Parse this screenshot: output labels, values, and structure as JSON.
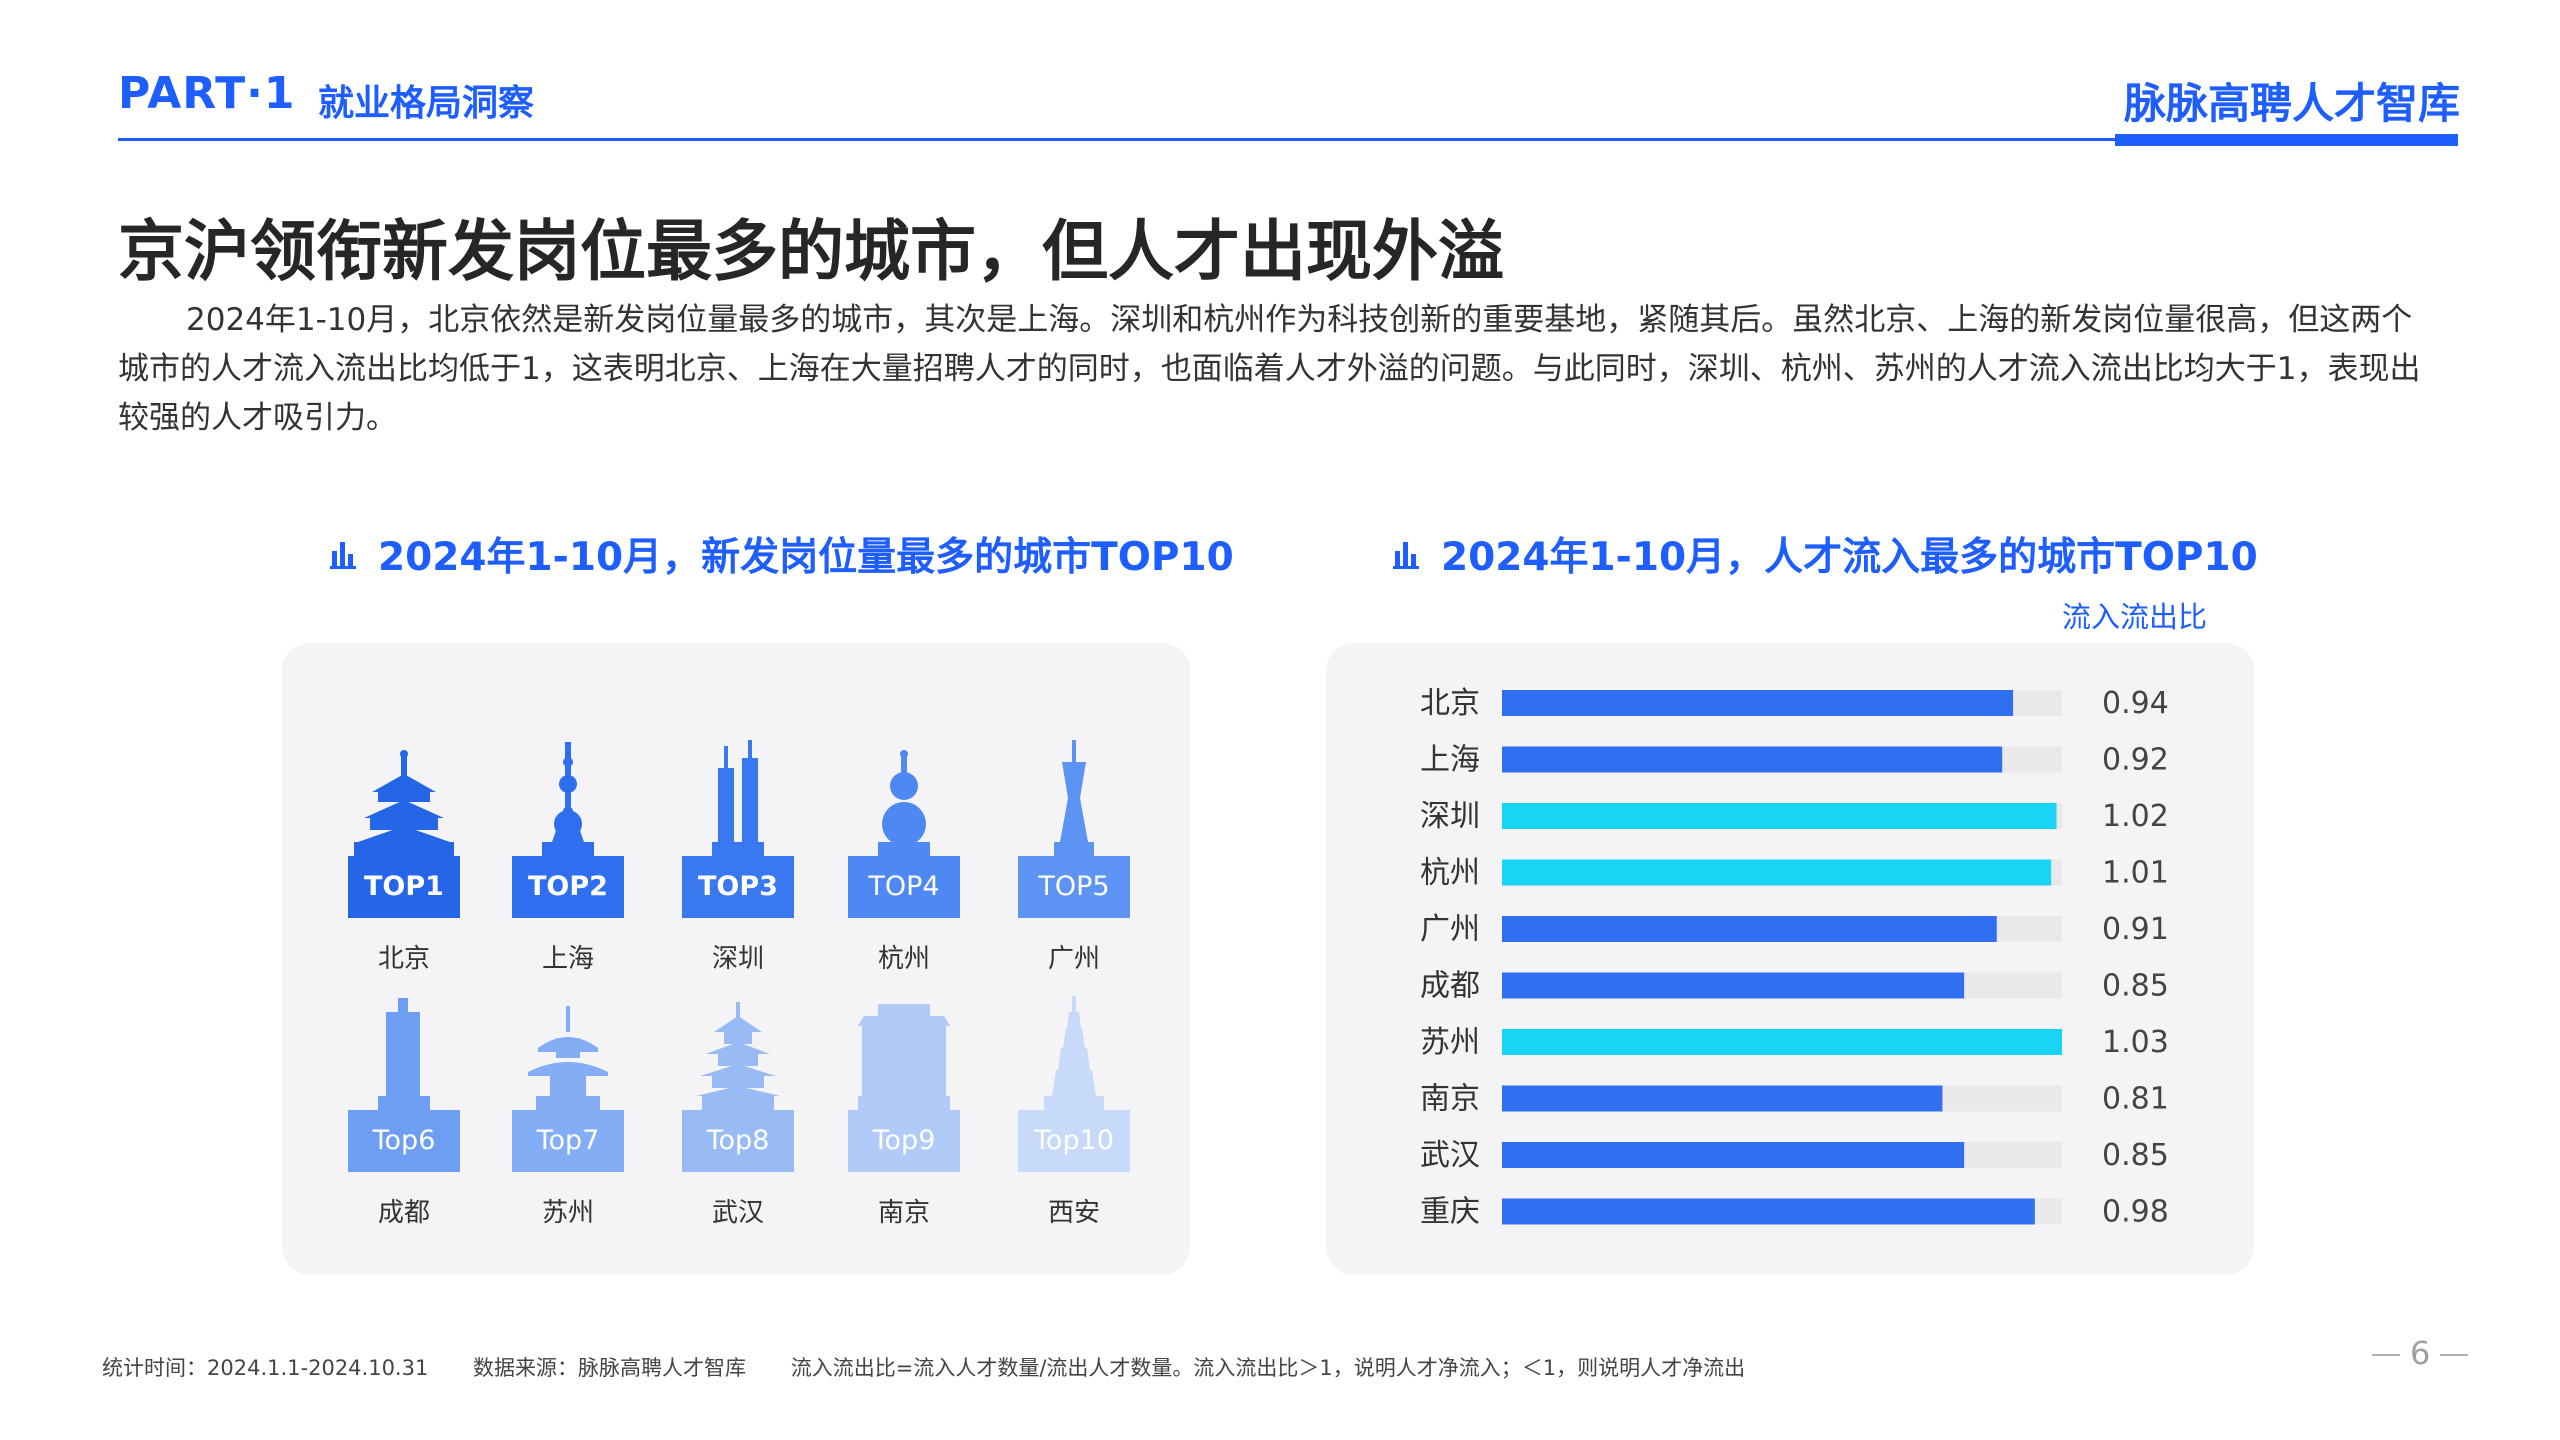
{
  "header": {
    "part": "PART·1",
    "section": "就业格局洞察",
    "brand": "脉脉高聘人才智库"
  },
  "title": "京沪领衔新发岗位最多的城市，但人才出现外溢",
  "intro": "2024年1-10月，北京依然是新发岗位量最多的城市，其次是上海。深圳和杭州作为科技创新的重要基地，紧随其后。虽然北京、上海的新发岗位量很高，但这两个城市的人才流入流出比均低于1，这表明北京、上海在大量招聘人才的同时，也面临着人才外溢的问题。与此同时，深圳、杭州、苏州的人才流入流出比均大于1，表现出较强的人才吸引力。",
  "left_chart": {
    "title": "2024年1-10月，新发岗位量最多的城市TOP10",
    "cities": [
      {
        "rank": "TOP1",
        "name": "北京",
        "color": "#2566e8",
        "icon": "temple-of-heaven-icon"
      },
      {
        "rank": "TOP2",
        "name": "上海",
        "color": "#2f6fef",
        "icon": "oriental-pearl-tower-icon"
      },
      {
        "rank": "TOP3",
        "name": "深圳",
        "color": "#3a78f0",
        "icon": "twin-towers-icon"
      },
      {
        "rank": "TOP4",
        "name": "杭州",
        "color": "#4e88f2",
        "icon": "pagoda-gourd-icon"
      },
      {
        "rank": "TOP5",
        "name": "广州",
        "color": "#5d94f3",
        "icon": "canton-tower-icon"
      },
      {
        "rank": "Top6",
        "name": "成都",
        "color": "#6e9ef2",
        "icon": "skyscraper-icon"
      },
      {
        "rank": "Top7",
        "name": "苏州",
        "color": "#83adf4",
        "icon": "pavilion-icon"
      },
      {
        "rank": "Top8",
        "name": "武汉",
        "color": "#98bbf6",
        "icon": "yellow-crane-tower-icon"
      },
      {
        "rank": "Top9",
        "name": "南京",
        "color": "#b0cbf7",
        "icon": "gate-icon"
      },
      {
        "rank": "Top10",
        "name": "西安",
        "color": "#c7daf9",
        "icon": "wild-goose-pagoda-icon"
      }
    ]
  },
  "right_chart": {
    "title": "2024年1-10月，人才流入最多的城市TOP10",
    "ratio_label": "流入流出比"
  },
  "chart_data": {
    "type": "bar",
    "orientation": "horizontal",
    "title": "2024年1-10月，人才流入最多的城市TOP10",
    "ylabel": "",
    "xlabel": "流入流出比",
    "xlim": [
      0,
      1.03
    ],
    "categories": [
      "北京",
      "上海",
      "深圳",
      "杭州",
      "广州",
      "成都",
      "苏州",
      "南京",
      "武汉",
      "重庆"
    ],
    "values": [
      0.94,
      0.92,
      1.02,
      1.01,
      0.91,
      0.85,
      1.03,
      0.81,
      0.85,
      0.98
    ],
    "value_labels": [
      "0.94",
      "0.92",
      "1.02",
      "1.01",
      "0.91",
      "0.85",
      "1.03",
      "0.81",
      "0.85",
      "0.98"
    ],
    "colors": {
      "below_one": "#2f6ff0",
      "above_one": "#1ad4f5",
      "track": "#e9e9ec"
    }
  },
  "footer": {
    "stat_time": "统计时间：2024.1.1-2024.10.31",
    "source": "数据来源：脉脉高聘人才智库",
    "note": "流入流出比=流入人才数量/流出人才数量。流入流出比＞1，说明人才净流入；＜1，则说明人才净流出"
  },
  "page_number": "6"
}
